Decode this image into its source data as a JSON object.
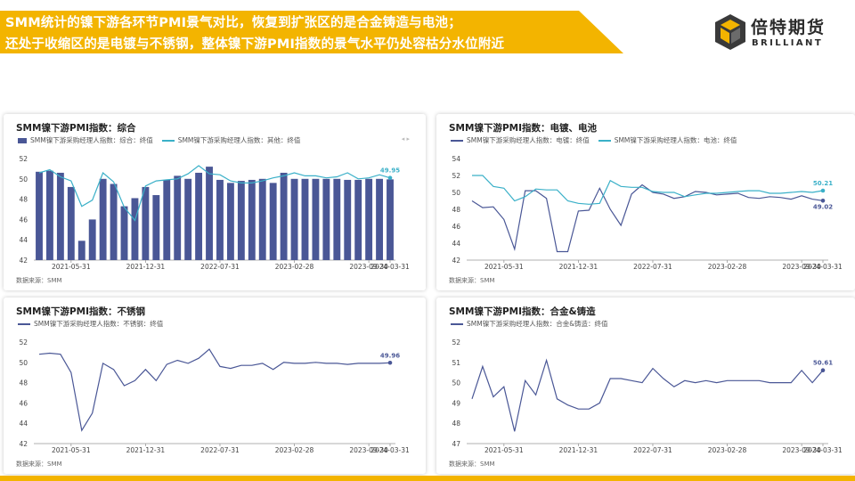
{
  "header": {
    "line1": "SMM统计的镍下游各环节PMI景气对比，恢复到扩张区的是合金铸造与电池；",
    "line2": "还处于收缩区的是电镀与不锈钢，整体镍下游PMI指数的景气水平仍处容枯分水位附近"
  },
  "logo": {
    "cn": "倍特期货",
    "en": "BRILLIANT"
  },
  "colors": {
    "banner": "#f3b400",
    "bar": "#4a5796",
    "line_dark": "#4a5796",
    "line_light": "#3ab0c8",
    "axis_text": "#444444"
  },
  "panels": [
    {
      "title": "SMM镍下游PMI指数：综合",
      "source": "数据来源：SMM",
      "pager": "◂ ▸",
      "chart_data": {
        "type": "bar",
        "x_tick_labels": [
          "2021-05-31",
          "2021-12-31",
          "2022-07-31",
          "2023-02-28",
          "2023-09-30",
          "2024-03-31"
        ],
        "ylim": [
          42,
          52
        ],
        "y_ticks": [
          42,
          44,
          46,
          48,
          50,
          52
        ],
        "end_label": "49.95",
        "series": [
          {
            "name": "SMM镍下游采购经理人指数：综合：终值",
            "kind": "bar",
            "values": [
              50.7,
              50.8,
              50.6,
              49.2,
              43.9,
              46.0,
              50.0,
              49.5,
              47.3,
              48.1,
              49.2,
              48.4,
              49.9,
              50.3,
              50.0,
              50.6,
              51.2,
              49.9,
              49.6,
              49.8,
              49.9,
              50.0,
              49.6,
              50.6,
              50.0,
              50.0,
              50.0,
              50.0,
              50.0,
              49.9,
              49.9,
              50.0,
              50.0,
              49.95
            ]
          },
          {
            "name": "SMM镍下游采购经理人指数：其他：终值",
            "kind": "line",
            "values": [
              50.6,
              50.9,
              50.2,
              49.8,
              47.3,
              47.9,
              50.6,
              49.7,
              47.2,
              45.9,
              49.3,
              49.8,
              49.9,
              50.0,
              50.5,
              51.3,
              50.5,
              50.4,
              49.8,
              49.6,
              49.6,
              49.8,
              50.1,
              50.3,
              50.6,
              50.3,
              50.3,
              50.1,
              50.2,
              50.6,
              50.0,
              50.1,
              50.4,
              50.1
            ]
          }
        ]
      }
    },
    {
      "title": "SMM镍下游PMI指数：电镀、电池",
      "source": "数据来源：SMM",
      "chart_data": {
        "type": "line",
        "x_tick_labels": [
          "2021-05-31",
          "2021-12-31",
          "2022-07-31",
          "2023-02-28",
          "2023-09-30",
          "2024-03-31"
        ],
        "ylim": [
          42,
          54
        ],
        "y_ticks": [
          42,
          44,
          46,
          48,
          50,
          52,
          54
        ],
        "series": [
          {
            "name": "SMM镍下游采购经理人指数：电镀：终值",
            "kind": "line",
            "end_label": "49.02",
            "values": [
              49.0,
              48.2,
              48.3,
              46.8,
              43.3,
              50.2,
              50.2,
              49.3,
              43.0,
              43.0,
              47.8,
              47.9,
              50.5,
              48.0,
              46.1,
              49.8,
              50.9,
              50.0,
              49.8,
              49.3,
              49.5,
              50.1,
              50.0,
              49.7,
              49.8,
              49.9,
              49.4,
              49.3,
              49.5,
              49.4,
              49.2,
              49.6,
              49.2,
              49.02
            ]
          },
          {
            "name": "SMM镍下游采购经理人指数：电池：终值",
            "kind": "line",
            "end_label": "50.21",
            "values": [
              52.0,
              52.0,
              50.7,
              50.5,
              49.0,
              49.5,
              50.4,
              50.3,
              50.3,
              49.0,
              48.7,
              48.6,
              48.7,
              51.4,
              50.7,
              50.6,
              50.6,
              50.1,
              50.0,
              50.0,
              49.5,
              49.7,
              49.9,
              49.9,
              50.0,
              50.1,
              50.2,
              50.2,
              49.9,
              49.9,
              50.0,
              50.1,
              50.0,
              50.21
            ]
          }
        ]
      }
    },
    {
      "title": "SMM镍下游PMI指数：不锈钢",
      "source": "数据来源：SMM",
      "chart_data": {
        "type": "line",
        "x_tick_labels": [
          "2021-05-31",
          "2021-12-31",
          "2022-07-31",
          "2023-02-28",
          "2023-09-30",
          "2024-03-31"
        ],
        "ylim": [
          42,
          52
        ],
        "y_ticks": [
          42,
          44,
          46,
          48,
          50,
          52
        ],
        "series": [
          {
            "name": "SMM镍下游采购经理人指数：不锈钢：终值",
            "kind": "line",
            "end_label": "49.96",
            "values": [
              50.8,
              50.9,
              50.8,
              49.0,
              43.3,
              45.0,
              49.9,
              49.3,
              47.7,
              48.2,
              49.3,
              48.2,
              49.8,
              50.2,
              49.9,
              50.4,
              51.3,
              49.6,
              49.4,
              49.7,
              49.7,
              49.9,
              49.3,
              50.0,
              49.9,
              49.9,
              50.0,
              49.9,
              49.9,
              49.8,
              49.9,
              49.9,
              49.9,
              49.96
            ]
          }
        ]
      }
    },
    {
      "title": "SMM镍下游PMI指数：合金&铸造",
      "source": "数据来源：SMM",
      "chart_data": {
        "type": "line",
        "x_tick_labels": [
          "2021-05-31",
          "2021-12-31",
          "2022-07-31",
          "2023-02-28",
          "2023-09-30",
          "2024-03-31"
        ],
        "ylim": [
          47,
          52
        ],
        "y_ticks": [
          47,
          48,
          49,
          50,
          51,
          52
        ],
        "series": [
          {
            "name": "SMM镍下游采购经理人指数：合金&铸造：终值",
            "kind": "line",
            "end_label": "50.61",
            "values": [
              49.2,
              50.8,
              49.3,
              49.8,
              47.6,
              50.1,
              49.4,
              51.1,
              49.2,
              48.9,
              48.7,
              48.7,
              49.0,
              50.2,
              50.2,
              50.1,
              50.0,
              50.7,
              50.2,
              49.8,
              50.1,
              50.0,
              50.1,
              50.0,
              50.1,
              50.1,
              50.1,
              50.1,
              50.0,
              50.0,
              50.0,
              50.6,
              50.0,
              50.61
            ]
          }
        ]
      }
    }
  ]
}
